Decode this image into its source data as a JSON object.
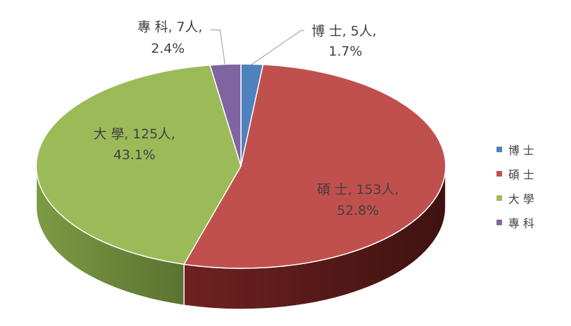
{
  "chart_data": {
    "type": "pie",
    "style": "3d",
    "legend_position": "right",
    "slices": [
      {
        "category": "博 士",
        "count": 5,
        "count_label": "博 士, 5人,",
        "percent_label": "1.7%",
        "color": "#4f81bd",
        "side_color": "#2c4a6e"
      },
      {
        "category": "碩 士",
        "count": 153,
        "count_label": "碩 士, 153人,",
        "percent_label": "52.8%",
        "color": "#c0504d",
        "side_color": "#5a1a19"
      },
      {
        "category": "大 學",
        "count": 125,
        "count_label": "大 學, 125人,",
        "percent_label": "43.1%",
        "color": "#9bbb59",
        "side_color": "#5f7a2e"
      },
      {
        "category": "專 科",
        "count": 7,
        "count_label": "專 科, 7人,",
        "percent_label": "2.4%",
        "color": "#8064a2",
        "side_color": "#4a3563"
      }
    ]
  }
}
